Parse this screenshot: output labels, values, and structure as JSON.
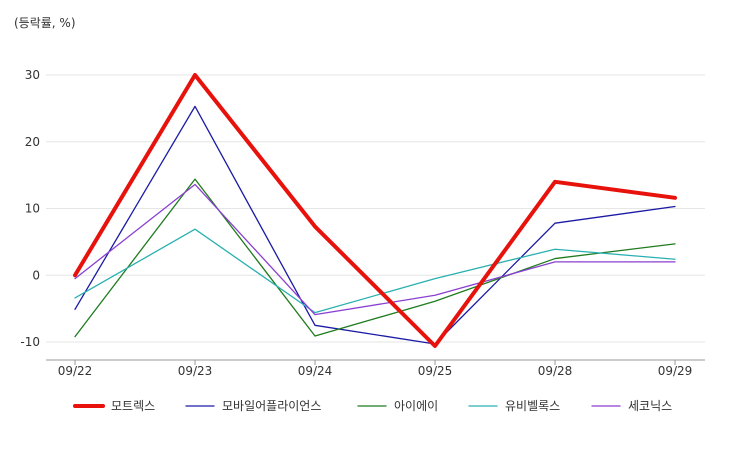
{
  "chart_data": {
    "type": "line",
    "unit_label": "(등락률, %)",
    "categories": [
      "09/22",
      "09/23",
      "09/24",
      "09/25",
      "09/28",
      "09/29"
    ],
    "y_ticks": [
      30,
      20,
      10,
      0,
      -10
    ],
    "ylim": [
      -13,
      35
    ],
    "grid": true,
    "legend_position": "bottom",
    "series": [
      {
        "name": "모트렉스",
        "color": "#e8120c",
        "values": [
          0,
          30,
          7.3,
          -10.6,
          14,
          11.6
        ]
      },
      {
        "name": "모바일어플라이언스",
        "color": "#1a1aa6",
        "values": [
          -5.1,
          25.3,
          -7.5,
          -10.3,
          7.8,
          10.3
        ]
      },
      {
        "name": "아이에이",
        "color": "#1e7b1e",
        "values": [
          -9.2,
          14.4,
          -9.1,
          -3.9,
          2.5,
          4.7
        ]
      },
      {
        "name": "유비벨록스",
        "color": "#2ab0b0",
        "values": [
          -3.4,
          6.9,
          -5.6,
          -0.5,
          3.9,
          2.4
        ]
      },
      {
        "name": "세코닉스",
        "color": "#8a3fd1",
        "values": [
          -0.5,
          13.6,
          -5.9,
          -3,
          2,
          2
        ]
      }
    ]
  }
}
